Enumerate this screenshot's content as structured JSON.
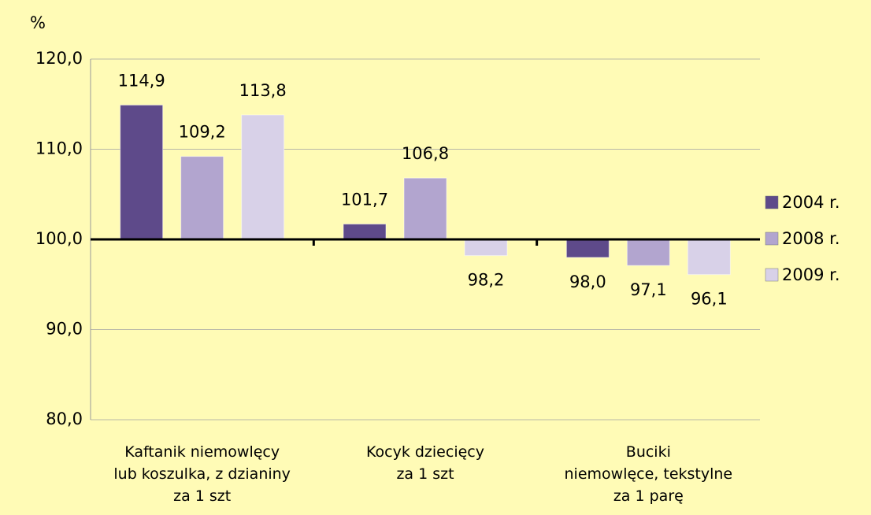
{
  "chart_data": {
    "type": "bar",
    "y_label": "%",
    "categories": [
      "Kaftanik niemowlęcy\nlub koszulka, z dzianiny\nza 1 szt",
      "Kocyk dziecięcy\nza 1 szt",
      "Buciki\nniemowlęce, tekstylne\nza 1 parę"
    ],
    "series": [
      {
        "name": "2004 r.",
        "color": "#5e4a8a",
        "values": [
          114.9,
          101.7,
          98.0
        ],
        "value_labels": [
          "114,9",
          "101,7",
          "98,0"
        ]
      },
      {
        "name": "2008 r.",
        "color": "#b2a5cf",
        "values": [
          109.2,
          106.8,
          97.1
        ],
        "value_labels": [
          "109,2",
          "106,8",
          "97,1"
        ]
      },
      {
        "name": "2009 r.",
        "color": "#d8d1e8",
        "values": [
          113.8,
          98.2,
          96.1
        ],
        "value_labels": [
          "113,8",
          "98,2",
          "96,1"
        ]
      }
    ],
    "ylim": [
      80,
      120
    ],
    "yticks": [
      {
        "value": 80,
        "label": "80,0"
      },
      {
        "value": 90,
        "label": "90,0"
      },
      {
        "value": 100,
        "label": "100,0"
      },
      {
        "value": 110,
        "label": "110,0"
      },
      {
        "value": 120,
        "label": "120,0"
      }
    ],
    "baseline": 100,
    "grid": true,
    "legend": "right"
  }
}
